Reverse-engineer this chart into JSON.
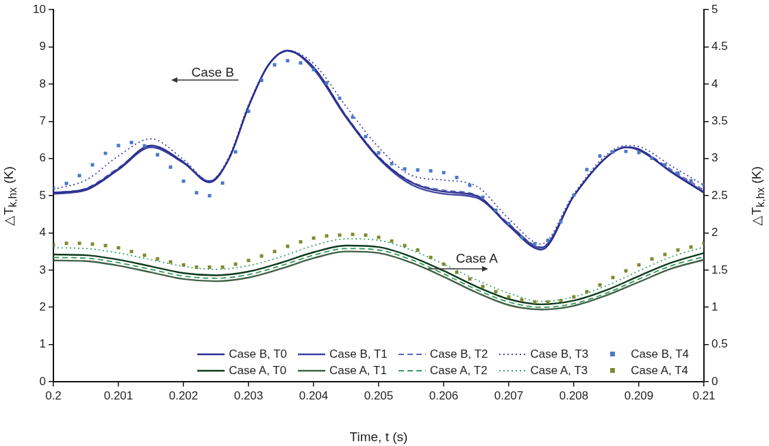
{
  "chart_data": {
    "type": "line",
    "xlabel": "Time, t (s)",
    "ylabel": "△T$_{k,hx}$ (K)",
    "y2label": "△T$_{k,hx}$ (K)",
    "xlim": [
      0.2,
      0.21
    ],
    "xticks": [
      0.2,
      0.201,
      0.202,
      0.203,
      0.204,
      0.205,
      0.206,
      0.207,
      0.208,
      0.209,
      0.21
    ],
    "ylim": [
      0,
      10
    ],
    "yticks": [
      0,
      1,
      2,
      3,
      4,
      5,
      6,
      7,
      8,
      9,
      10
    ],
    "y2lim": [
      0,
      5
    ],
    "y2ticks": [
      0,
      0.5,
      1,
      1.5,
      2,
      2.5,
      3,
      3.5,
      4,
      4.5,
      5
    ],
    "grid": false,
    "legend": "bottom",
    "annotations": [
      "Case B",
      {
        "text": "Case A",
        "x": 0.20576,
        "y": 3.03
      }
    ],
    "series": [
      {
        "name": "Case B, T0",
        "line_style": "solid",
        "marker": "none",
        "color": "#2b2f8f",
        "x": [
          0.2,
          0.2005,
          0.201,
          0.2015,
          0.202,
          0.2024,
          0.2027,
          0.203,
          0.2033,
          0.2036,
          0.204,
          0.2045,
          0.205,
          0.2055,
          0.206,
          0.2065,
          0.207,
          0.2075,
          0.208,
          0.2085,
          0.2088,
          0.209,
          0.2095,
          0.21
        ],
        "values": [
          5.08,
          5.18,
          5.72,
          6.35,
          5.9,
          5.36,
          6.0,
          7.4,
          8.5,
          8.9,
          8.45,
          7.13,
          6.03,
          5.36,
          5.11,
          5.0,
          4.19,
          3.55,
          4.99,
          6.03,
          6.3,
          6.25,
          5.63,
          5.08
        ]
      },
      {
        "name": "Case B, T1",
        "line_style": "solid",
        "marker": "none",
        "color": "#3d41a0",
        "x": [
          0.2,
          0.2005,
          0.201,
          0.2015,
          0.202,
          0.2024,
          0.2027,
          0.203,
          0.2033,
          0.2036,
          0.204,
          0.2045,
          0.205,
          0.2055,
          0.206,
          0.2065,
          0.207,
          0.2075,
          0.208,
          0.2085,
          0.2088,
          0.209,
          0.2095,
          0.21
        ],
        "values": [
          5.05,
          5.15,
          5.7,
          6.3,
          5.88,
          5.38,
          6.0,
          7.4,
          8.5,
          8.9,
          8.4,
          7.1,
          6.0,
          5.3,
          5.05,
          4.95,
          4.22,
          3.6,
          5.0,
          6.03,
          6.3,
          6.22,
          5.65,
          5.1
        ]
      },
      {
        "name": "Case B, T2",
        "line_style": "dashed",
        "marker": "none",
        "color": "#5566c0",
        "x": [
          0.2,
          0.2005,
          0.201,
          0.2015,
          0.202,
          0.2024,
          0.2027,
          0.203,
          0.2033,
          0.2036,
          0.204,
          0.2045,
          0.205,
          0.2055,
          0.206,
          0.2065,
          0.207,
          0.2075,
          0.208,
          0.2085,
          0.2088,
          0.209,
          0.2095,
          0.21
        ],
        "values": [
          5.08,
          5.2,
          5.75,
          6.33,
          5.92,
          5.4,
          6.0,
          7.4,
          8.5,
          8.88,
          8.45,
          7.15,
          6.05,
          5.38,
          5.15,
          5.02,
          4.25,
          3.62,
          5.0,
          6.05,
          6.32,
          6.25,
          5.7,
          5.15
        ]
      },
      {
        "name": "Case B, T3",
        "line_style": "dotted",
        "marker": "none",
        "color": "#3d41a0",
        "x": [
          0.2,
          0.2005,
          0.201,
          0.2015,
          0.202,
          0.2024,
          0.2027,
          0.203,
          0.2033,
          0.2036,
          0.204,
          0.2045,
          0.205,
          0.2055,
          0.206,
          0.2065,
          0.207,
          0.2075,
          0.208,
          0.2085,
          0.2088,
          0.209,
          0.2095,
          0.21
        ],
        "values": [
          5.17,
          5.42,
          6.07,
          6.53,
          5.97,
          5.4,
          6.05,
          7.45,
          8.5,
          8.9,
          8.55,
          7.4,
          6.3,
          5.55,
          5.42,
          5.26,
          4.38,
          3.7,
          5.05,
          6.1,
          6.35,
          6.32,
          5.8,
          5.28
        ]
      },
      {
        "name": "Case B, T4",
        "type": "scatter",
        "marker": "square",
        "color": "#4a78c8",
        "x": [
          0.2,
          0.2002,
          0.2004,
          0.2006,
          0.2008,
          0.201,
          0.2012,
          0.2014,
          0.2016,
          0.2018,
          0.202,
          0.2022,
          0.2024,
          0.2026,
          0.2028,
          0.203,
          0.2032,
          0.2034,
          0.2036,
          0.2038,
          0.204,
          0.2042,
          0.2044,
          0.2046,
          0.2048,
          0.205,
          0.2052,
          0.2054,
          0.2056,
          0.2058,
          0.206,
          0.2062,
          0.2064,
          0.2066,
          0.2068,
          0.207,
          0.2072,
          0.2074,
          0.2076,
          0.2078,
          0.208,
          0.2082,
          0.2084,
          0.2086,
          0.2088,
          0.209,
          0.2092,
          0.2094,
          0.2096,
          0.2098,
          0.21
        ],
        "values": [
          5.2,
          5.33,
          5.54,
          5.83,
          6.14,
          6.35,
          6.43,
          6.34,
          6.1,
          5.77,
          5.39,
          5.08,
          5.0,
          5.34,
          6.18,
          7.27,
          8.1,
          8.52,
          8.63,
          8.57,
          8.39,
          8.03,
          7.62,
          7.11,
          6.59,
          6.15,
          5.86,
          5.72,
          5.69,
          5.67,
          5.62,
          5.49,
          5.28,
          4.96,
          4.61,
          4.25,
          3.88,
          3.71,
          3.8,
          4.3,
          5.02,
          5.7,
          6.07,
          6.18,
          6.19,
          6.16,
          6.01,
          5.83,
          5.61,
          5.4,
          5.29
        ]
      },
      {
        "name": "Case A, T0",
        "axis": "y2",
        "line_style": "solid",
        "marker": "none",
        "color": "#0c3a1c",
        "x": [
          0.2,
          0.2005,
          0.201,
          0.2015,
          0.202,
          0.2025,
          0.203,
          0.2035,
          0.204,
          0.2045,
          0.205,
          0.2055,
          0.206,
          0.2065,
          0.207,
          0.2075,
          0.208,
          0.2085,
          0.209,
          0.2095,
          0.21
        ],
        "values": [
          1.71,
          1.7,
          1.64,
          1.55,
          1.46,
          1.43,
          1.48,
          1.6,
          1.74,
          1.83,
          1.81,
          1.68,
          1.49,
          1.28,
          1.11,
          1.04,
          1.09,
          1.23,
          1.42,
          1.6,
          1.73
        ]
      },
      {
        "name": "Case A, T1",
        "axis": "y2",
        "line_style": "solid",
        "marker": "none",
        "color": "#3f5f45",
        "x": [
          0.2,
          0.2005,
          0.201,
          0.2015,
          0.202,
          0.2025,
          0.203,
          0.2035,
          0.204,
          0.2045,
          0.205,
          0.2055,
          0.206,
          0.2065,
          0.207,
          0.2075,
          0.208,
          0.2085,
          0.209,
          0.2095,
          0.21
        ],
        "values": [
          1.63,
          1.62,
          1.56,
          1.47,
          1.38,
          1.35,
          1.4,
          1.52,
          1.66,
          1.75,
          1.73,
          1.6,
          1.41,
          1.2,
          1.03,
          0.97,
          1.02,
          1.16,
          1.34,
          1.52,
          1.64
        ]
      },
      {
        "name": "Case A, T2",
        "axis": "y2",
        "line_style": "dashed",
        "marker": "none",
        "color": "#2e9a5a",
        "x": [
          0.2,
          0.2005,
          0.201,
          0.2015,
          0.202,
          0.2025,
          0.203,
          0.2035,
          0.204,
          0.2045,
          0.205,
          0.2055,
          0.206,
          0.2065,
          0.207,
          0.2075,
          0.208,
          0.2085,
          0.209,
          0.2095,
          0.21
        ],
        "values": [
          1.67,
          1.66,
          1.6,
          1.51,
          1.42,
          1.39,
          1.44,
          1.56,
          1.7,
          1.79,
          1.77,
          1.64,
          1.45,
          1.24,
          1.07,
          1.0,
          1.05,
          1.19,
          1.38,
          1.56,
          1.68
        ]
      },
      {
        "name": "Case A, T3",
        "axis": "y2",
        "line_style": "dotted",
        "marker": "none",
        "color": "#3aa060",
        "x": [
          0.2,
          0.2005,
          0.201,
          0.2015,
          0.202,
          0.2025,
          0.203,
          0.2035,
          0.204,
          0.2045,
          0.205,
          0.2055,
          0.206,
          0.2065,
          0.207,
          0.2075,
          0.208,
          0.2085,
          0.209,
          0.2095,
          0.21
        ],
        "values": [
          1.8,
          1.79,
          1.73,
          1.64,
          1.55,
          1.51,
          1.56,
          1.68,
          1.83,
          1.92,
          1.9,
          1.77,
          1.58,
          1.37,
          1.19,
          1.08,
          1.14,
          1.29,
          1.49,
          1.68,
          1.81
        ]
      },
      {
        "name": "Case A, T4",
        "type": "scatter",
        "axis": "y2",
        "marker": "square",
        "color": "#7d8a30",
        "x": [
          0.2,
          0.2002,
          0.2004,
          0.2006,
          0.2008,
          0.201,
          0.2012,
          0.2014,
          0.2016,
          0.2018,
          0.202,
          0.2022,
          0.2024,
          0.2026,
          0.2028,
          0.203,
          0.2032,
          0.2034,
          0.2036,
          0.2038,
          0.204,
          0.2042,
          0.2044,
          0.2046,
          0.2048,
          0.205,
          0.2052,
          0.2054,
          0.2056,
          0.2058,
          0.206,
          0.2062,
          0.2064,
          0.2066,
          0.2068,
          0.207,
          0.2072,
          0.2074,
          0.2076,
          0.2078,
          0.208,
          0.2082,
          0.2084,
          0.2086,
          0.2088,
          0.209,
          0.2092,
          0.2094,
          0.2096,
          0.2098,
          0.21
        ],
        "values": [
          1.84,
          1.86,
          1.86,
          1.85,
          1.83,
          1.8,
          1.75,
          1.7,
          1.65,
          1.61,
          1.57,
          1.54,
          1.54,
          1.54,
          1.58,
          1.63,
          1.69,
          1.75,
          1.82,
          1.88,
          1.93,
          1.96,
          1.97,
          1.98,
          1.97,
          1.94,
          1.89,
          1.83,
          1.77,
          1.67,
          1.58,
          1.47,
          1.38,
          1.28,
          1.21,
          1.14,
          1.1,
          1.07,
          1.07,
          1.09,
          1.14,
          1.21,
          1.3,
          1.4,
          1.49,
          1.57,
          1.65,
          1.71,
          1.77,
          1.81,
          1.86
        ]
      }
    ]
  }
}
